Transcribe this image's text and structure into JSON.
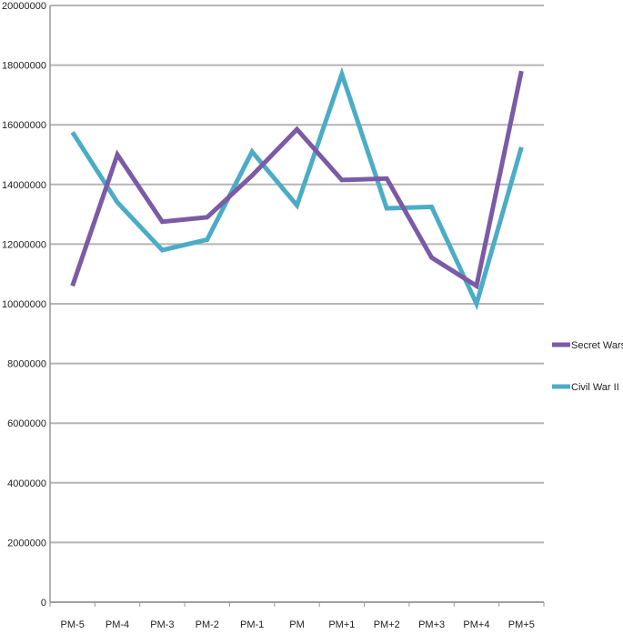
{
  "chart_data": {
    "type": "line",
    "categories": [
      "PM-5",
      "PM-4",
      "PM-3",
      "PM-2",
      "PM-1",
      "PM",
      "PM+1",
      "PM+2",
      "PM+3",
      "PM+4",
      "PM+5"
    ],
    "series": [
      {
        "name": "Secret Wars",
        "color": "#7b5aa6",
        "values": [
          10600000,
          15000000,
          12750000,
          12900000,
          14300000,
          15850000,
          14150000,
          14200000,
          11550000,
          10600000,
          17800000
        ]
      },
      {
        "name": "Civil War II",
        "color": "#4bacc6",
        "values": [
          15750000,
          13400000,
          11800000,
          12150000,
          15100000,
          13300000,
          17700000,
          13200000,
          13250000,
          10000000,
          15250000
        ]
      }
    ],
    "y_ticks": [
      "20000000",
      "18000000",
      "16000000",
      "14000000",
      "12000000",
      "10000000",
      "8000000",
      "6000000",
      "4000000",
      "2000000",
      "0"
    ],
    "ylim": [
      0,
      20000000
    ],
    "grid": true,
    "legend_position": "right",
    "title": "",
    "xlabel": "",
    "ylabel": ""
  }
}
